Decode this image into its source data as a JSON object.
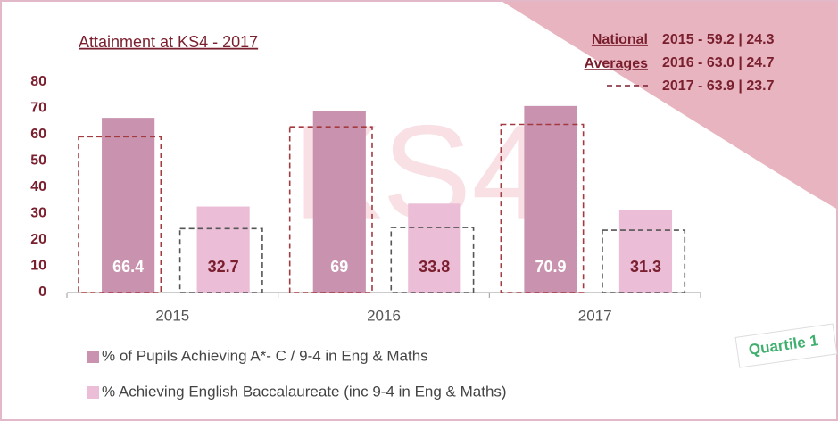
{
  "chart_data": {
    "type": "bar",
    "title": "Attainment at KS4 - 2017",
    "watermark": "KS4",
    "badge": "Quartile 1",
    "categories": [
      "2015",
      "2016",
      "2017"
    ],
    "series": [
      {
        "name": "% of Pupils Achieving A*- C / 9-4 in Eng & Maths",
        "color": "#c993b0",
        "values": [
          66.4,
          69,
          70.9
        ]
      },
      {
        "name": "% Achieving English Baccalaureate (inc 9-4 in Eng & Maths)",
        "color": "#ebbdd6",
        "values": [
          32.7,
          33.8,
          31.3
        ]
      }
    ],
    "national_averages": {
      "label": [
        "National",
        "Averages"
      ],
      "lines": [
        "2015 - 59.2 | 24.3",
        "2016 - 63.0 | 24.7",
        "2017 - 63.9 | 23.7"
      ],
      "series": [
        {
          "color": "#a33a3f",
          "values": [
            59.2,
            63.0,
            63.9
          ]
        },
        {
          "color": "#555555",
          "values": [
            24.3,
            24.7,
            23.7
          ]
        }
      ]
    },
    "ylim": [
      0,
      80
    ],
    "yticks": [
      0,
      10,
      20,
      30,
      40,
      50,
      60,
      70,
      80
    ],
    "grid": false
  }
}
